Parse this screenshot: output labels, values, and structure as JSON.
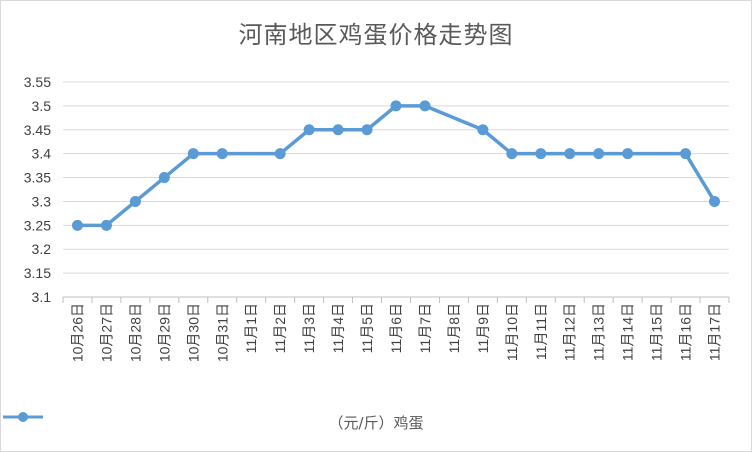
{
  "chart_data": {
    "type": "line",
    "title": "河南地区鸡蛋价格走势图",
    "categories": [
      "10月26日",
      "10月27日",
      "10月28日",
      "10月29日",
      "10月30日",
      "10月31日",
      "11月1日",
      "11月2日",
      "11月3日",
      "11月4日",
      "11月5日",
      "11月6日",
      "11月7日",
      "11月8日",
      "11月9日",
      "11月10日",
      "11月11日",
      "11月12日",
      "11月13日",
      "11月14日",
      "11月15日",
      "11月16日",
      "11月17日"
    ],
    "series": [
      {
        "name": "（元/斤）鸡蛋",
        "color": "#5b9bd5",
        "values": [
          3.25,
          3.25,
          3.3,
          3.35,
          3.4,
          3.4,
          null,
          3.4,
          3.45,
          3.45,
          3.45,
          3.5,
          3.5,
          null,
          3.45,
          3.4,
          3.4,
          3.4,
          3.4,
          3.4,
          null,
          3.4,
          3.3
        ]
      }
    ],
    "ylim": [
      3.1,
      3.55
    ],
    "yticks": [
      "3.1",
      "3.15",
      "3.2",
      "3.25",
      "3.3",
      "3.35",
      "3.4",
      "3.45",
      "3.5",
      "3.55"
    ],
    "grid": true,
    "legend": "bottom"
  }
}
